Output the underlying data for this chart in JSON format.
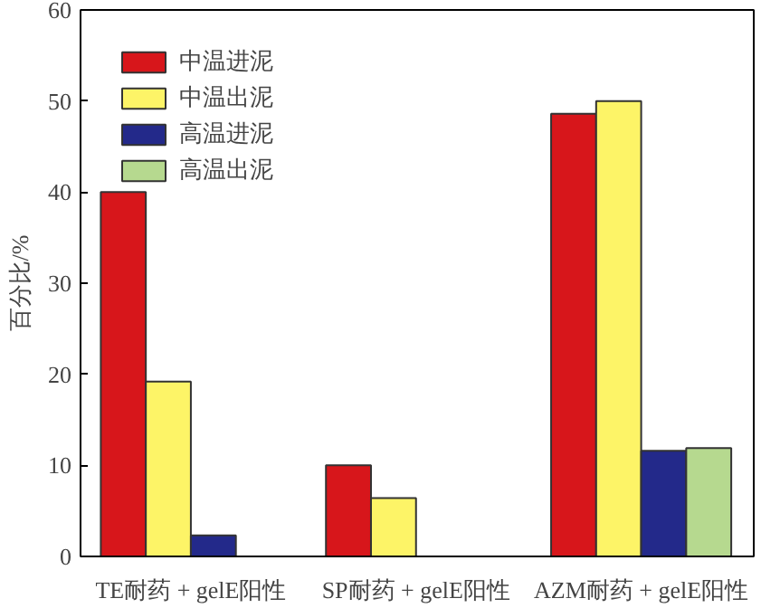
{
  "chart_data": {
    "type": "bar",
    "ylabel": "百分比/%",
    "categories": [
      "TE耐药 + gelE阳性",
      "SP耐药 + gelE阳性",
      "AZM耐药 + gelE阳性"
    ],
    "series": [
      {
        "name": "中温进泥",
        "color": "#d7161b",
        "values": [
          40,
          10,
          48.6
        ]
      },
      {
        "name": "中温出泥",
        "color": "#fdf467",
        "values": [
          19.2,
          6.4,
          50
        ]
      },
      {
        "name": "高温进泥",
        "color": "#23298a",
        "values": [
          2.3,
          null,
          11.6
        ]
      },
      {
        "name": "高温出泥",
        "color": "#b6d98f",
        "values": [
          null,
          null,
          11.9
        ]
      }
    ],
    "ylim": [
      0,
      60
    ],
    "yticks": [
      0,
      10,
      20,
      30,
      40,
      50,
      60
    ],
    "grid": false,
    "legend": "top left"
  }
}
